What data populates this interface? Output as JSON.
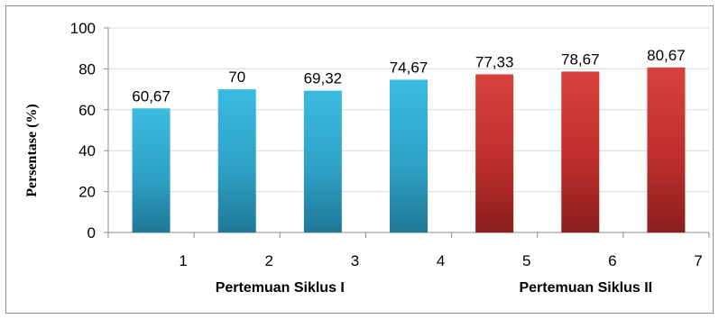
{
  "chart_data": {
    "type": "bar",
    "categories": [
      "1",
      "2",
      "3",
      "4",
      "5",
      "6",
      "7"
    ],
    "values": [
      60.67,
      70,
      69.32,
      74.67,
      77.33,
      78.67,
      80.67
    ],
    "value_labels": [
      "60,67",
      "70",
      "69,32",
      "74,67",
      "77,33",
      "78,67",
      "80,67"
    ],
    "ylabel": "Persentase (%)",
    "xlabel": "",
    "ylim": [
      0,
      100
    ],
    "yticks": [
      0,
      20,
      40,
      60,
      80,
      100
    ],
    "grid": true,
    "groups": [
      {
        "label": "Pertemuan Siklus I",
        "categories": [
          "1",
          "2",
          "3",
          "4"
        ],
        "color": "#35b3da"
      },
      {
        "label": "Pertemuan Siklus II",
        "categories": [
          "5",
          "6",
          "7"
        ],
        "color": "#cf3b36"
      }
    ]
  }
}
